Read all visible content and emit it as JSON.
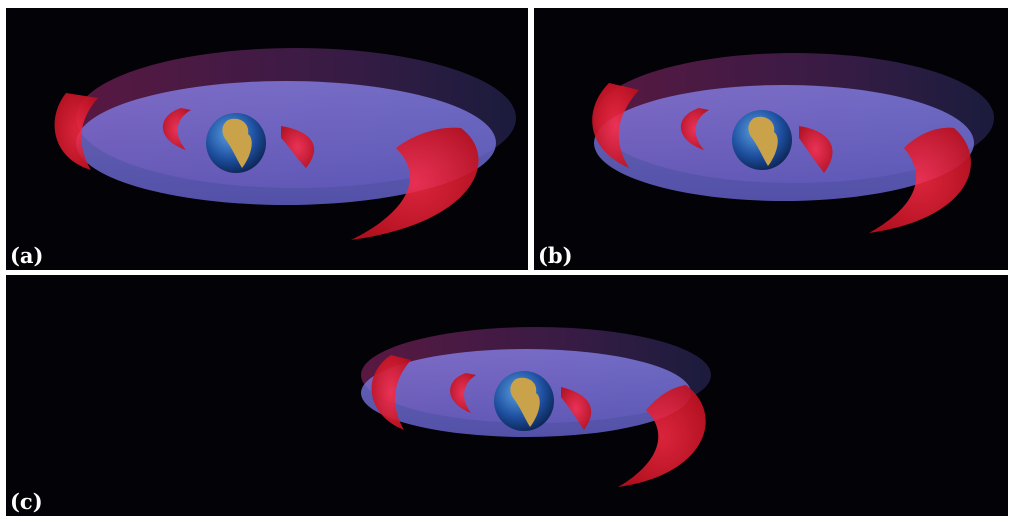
{
  "panels": [
    {
      "id": "a",
      "label": "(a)"
    },
    {
      "id": "b",
      "label": "(b)"
    },
    {
      "id": "c",
      "label": "(c)"
    }
  ],
  "colors": {
    "background": "#020207",
    "separator": "#ffffff",
    "outer_belt": "#e01830",
    "inner_belt": "#d0203a",
    "slot_region": "#7a78e0",
    "earth_ocean": "#1e4fa0",
    "earth_land": "#c9a24a"
  },
  "icons": [
    "earth-globe",
    "radiation-belt-torus"
  ]
}
